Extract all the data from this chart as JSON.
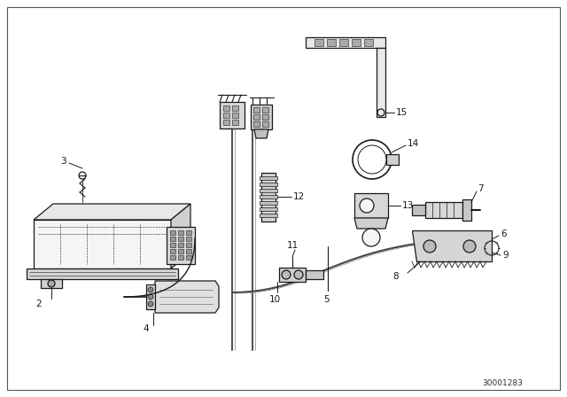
{
  "background_color": "#ffffff",
  "diagram_code": "30001283",
  "fig_width": 6.4,
  "fig_height": 4.48,
  "dpi": 100,
  "line_color": "#1a1a1a",
  "light_fill": "#e8e8e8",
  "mid_fill": "#d0d0d0",
  "dark_fill": "#b8b8b8",
  "label_fontsize": 7.5
}
